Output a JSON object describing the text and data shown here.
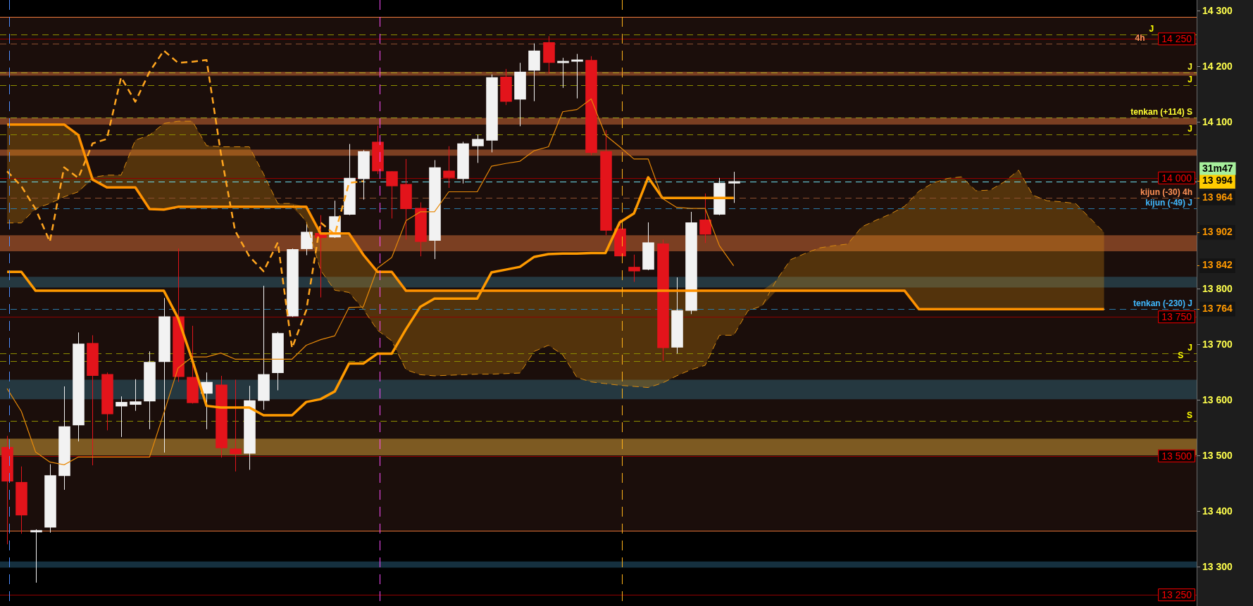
{
  "chart_data": {
    "type": "candlestick",
    "categories": [
      null,
      null,
      null,
      null,
      null,
      null,
      null,
      null,
      null,
      null,
      null,
      null,
      null,
      null,
      null,
      null,
      null,
      null,
      null,
      null,
      null,
      null,
      null,
      null,
      null,
      null,
      null,
      null,
      null,
      null,
      null,
      null,
      null,
      null,
      null,
      null,
      null,
      null,
      null,
      null,
      null,
      null,
      null,
      null,
      null,
      null,
      null,
      null,
      null,
      null,
      null,
      null,
      null,
      null,
      null,
      null,
      null,
      null,
      null,
      null,
      null,
      null,
      null,
      null,
      null,
      null,
      null,
      null,
      null,
      null,
      null,
      null,
      null,
      null,
      null,
      null,
      null,
      null
    ],
    "ohlc": [
      [
        13516,
        13536,
        13341,
        13454
      ],
      [
        13453,
        13481,
        13360,
        13393
      ],
      [
        13363,
        13368,
        13272,
        13366
      ],
      [
        13371,
        13485,
        13362,
        13465
      ],
      [
        13464,
        13625,
        13439,
        13553
      ],
      [
        13555,
        13722,
        13526,
        13702
      ],
      [
        13703,
        13717,
        13483,
        13644
      ],
      [
        13647,
        13650,
        13546,
        13575
      ],
      [
        13589,
        13607,
        13534,
        13597
      ],
      [
        13592,
        13638,
        13581,
        13598
      ],
      [
        13598,
        13688,
        13548,
        13669
      ],
      [
        13669,
        13784,
        13506,
        13751
      ],
      [
        13751,
        13873,
        13633,
        13642
      ],
      [
        13642,
        13734,
        13594,
        13595
      ],
      [
        13612,
        13650,
        13548,
        13633
      ],
      [
        13628,
        13644,
        13497,
        13514
      ],
      [
        13513,
        13637,
        13472,
        13503
      ],
      [
        13504,
        13626,
        13475,
        13600
      ],
      [
        13599,
        13806,
        13583,
        13647
      ],
      [
        13649,
        13723,
        13618,
        13721
      ],
      [
        13751,
        13873,
        13750,
        13872
      ],
      [
        13872,
        13918,
        13861,
        13903
      ],
      [
        13901,
        13933,
        13785,
        13892
      ],
      [
        13893,
        13959,
        13892,
        13931
      ],
      [
        13934,
        14061,
        13933,
        14000
      ],
      [
        13998,
        14050,
        13961,
        14048
      ],
      [
        14065,
        14094,
        14007,
        14012
      ],
      [
        14012,
        14012,
        13927,
        13985
      ],
      [
        13989,
        14034,
        13889,
        13944
      ],
      [
        13946,
        13956,
        13859,
        13885
      ],
      [
        13887,
        14032,
        13854,
        14019
      ],
      [
        14013,
        14057,
        13982,
        14000
      ],
      [
        13998,
        14065,
        13990,
        14062
      ],
      [
        14057,
        14078,
        14027,
        14070
      ],
      [
        14067,
        14186,
        14046,
        14181
      ],
      [
        14182,
        14196,
        14131,
        14137
      ],
      [
        14141,
        14207,
        14093,
        14191
      ],
      [
        14193,
        14242,
        14138,
        14229
      ],
      [
        14244,
        14255,
        14187,
        14207
      ],
      [
        14208,
        14216,
        14162,
        14209
      ],
      [
        14210,
        14223,
        14143,
        14212
      ],
      [
        14212,
        14219,
        14041,
        14045
      ],
      [
        14048,
        14086,
        13897,
        13905
      ],
      [
        13909,
        13925,
        13859,
        13859
      ],
      [
        13840,
        13862,
        13813,
        13832
      ],
      [
        13835,
        13920,
        13834,
        13884
      ],
      [
        13882,
        13889,
        13671,
        13694
      ],
      [
        13695,
        13821,
        13684,
        13762
      ],
      [
        13761,
        13939,
        13755,
        13920
      ],
      [
        13925,
        13972,
        13883,
        13898
      ],
      [
        13934,
        14000,
        13933,
        13991
      ],
      [
        13990,
        14011,
        13955,
        13994
      ],
      null,
      null,
      null,
      null,
      null,
      null,
      null,
      null,
      null,
      null,
      null,
      null,
      null,
      null,
      null,
      null,
      null,
      null,
      null,
      null,
      null,
      null,
      null,
      null,
      null,
      null
    ],
    "colors": [
      "#e3141b",
      "#e3141b",
      "#f2f2f2",
      "#f2f2f2",
      "#f2f2f2",
      "#f2f2f2",
      "#e3141b",
      "#e3141b",
      "#f2f2f2",
      "#f2f2f2",
      "#f2f2f2",
      "#f2f2f2",
      "#e3141b",
      "#e3141b",
      "#f2f2f2",
      "#e3141b",
      "#e3141b",
      "#f2f2f2",
      "#f2f2f2",
      "#f2f2f2",
      "#f2f2f2",
      "#f2f2f2",
      "#e3141b",
      "#f2f2f2",
      "#f2f2f2",
      "#f2f2f2",
      "#e3141b",
      "#e3141b",
      "#e3141b",
      "#e3141b",
      "#f2f2f2",
      "#e3141b",
      "#f2f2f2",
      "#f2f2f2",
      "#f2f2f2",
      "#e3141b",
      "#f2f2f2",
      "#f2f2f2",
      "#e3141b",
      "#f2f2f2",
      "#f2f2f2",
      "#e3141b",
      "#e3141b",
      "#e3141b",
      "#e3141b",
      "#f2f2f2",
      "#e3141b",
      "#f2f2f2",
      "#f2f2f2",
      "#e3141b",
      "#f2f2f2",
      "#f2f2f2",
      null,
      null,
      null,
      null,
      null,
      null,
      null,
      null,
      null,
      null,
      null,
      null,
      null,
      null,
      null,
      null,
      null,
      null,
      null,
      null,
      null,
      null,
      null,
      null,
      null,
      null
    ],
    "series": [
      {
        "type": "line",
        "color": "#ff9a00",
        "values": [
          13831,
          13831,
          13797,
          13797,
          13797,
          13797,
          13797,
          13797,
          13797,
          13797,
          13797,
          13797,
          13748,
          13672,
          13590,
          13587,
          13587,
          13587,
          13573,
          13573,
          13573,
          13597,
          13602,
          13616,
          13666,
          13666,
          13684,
          13684,
          13728,
          13768,
          13783,
          13783,
          13783,
          13783,
          13830,
          13835,
          13840,
          13858,
          13863,
          13864,
          13864,
          13865,
          13865,
          13920,
          13936,
          14001,
          13964,
          13964,
          13964,
          13964,
          13964,
          13964,
          null,
          null,
          null,
          null,
          null,
          null,
          null,
          null,
          null,
          null,
          null,
          null,
          null,
          null,
          null,
          null,
          null,
          null,
          null,
          null,
          null,
          null,
          null,
          null,
          null,
          null
        ]
      },
      {
        "type": "line",
        "color": "#e88a0a",
        "values": [
          13621,
          13580,
          13507,
          13489,
          13484,
          13498,
          13498,
          13498,
          13498,
          13498,
          13498,
          13577,
          13658,
          13678,
          13678,
          13685,
          13674,
          13674,
          13674,
          13674,
          13674,
          13699,
          13709,
          13716,
          13767,
          13768,
          13838,
          13857,
          13923,
          13939,
          13939,
          13975,
          13975,
          13975,
          14021,
          14026,
          14030,
          14049,
          14056,
          14119,
          14123,
          14142,
          14077,
          14056,
          14034,
          14034,
          13963,
          13947,
          13945,
          13945,
          13878,
          13842,
          null,
          null,
          null,
          null,
          null,
          null,
          null,
          null,
          null,
          null,
          null,
          null,
          null,
          null,
          null,
          null,
          null,
          null,
          null,
          null,
          null,
          null,
          null,
          null,
          null,
          null
        ]
      },
      {
        "type": "line",
        "color": "#ffa51f",
        "line_style": "dashed",
        "values": [
          14012,
          13985,
          13944,
          13885,
          14019,
          14000,
          14062,
          14070,
          14181,
          14137,
          14191,
          14229,
          14207,
          14209,
          14212,
          14045,
          13905,
          13859,
          13832,
          13884,
          13694,
          13762,
          13920,
          13898,
          13991,
          13994,
          null,
          null,
          null,
          null,
          null,
          null,
          null,
          null,
          null,
          null,
          null,
          null,
          null,
          null,
          null,
          null,
          null,
          null,
          null,
          null,
          null,
          null,
          null,
          null,
          null,
          null,
          null,
          null,
          null,
          null,
          null,
          null,
          null,
          null,
          null,
          null,
          null,
          null,
          null,
          null,
          null,
          null,
          null,
          null,
          null,
          null,
          null,
          null,
          null,
          null,
          null,
          null
        ]
      },
      {
        "type": "line",
        "color": "#ff9200",
        "values": [
          14096,
          14096,
          14096,
          14096,
          14096,
          14077,
          13997,
          13983,
          13983,
          13983,
          13944,
          13943,
          13948,
          13948,
          13948,
          13948,
          13948,
          13948,
          13948,
          13948,
          13948,
          13948,
          13900,
          13900,
          13900,
          13862,
          13831,
          13831,
          13797,
          13797,
          13797,
          13797,
          13797,
          13797,
          13797,
          13797,
          13797,
          13797,
          13797,
          13797,
          13797,
          13797,
          13797,
          13797,
          13797,
          13797,
          13797,
          13797,
          13797,
          13797,
          13797,
          13797,
          13797,
          13797,
          13797,
          13797,
          13797,
          13797,
          13797,
          13797,
          13797,
          13797,
          13797,
          13797,
          13764,
          13764,
          13764,
          13764,
          13764,
          13764,
          13764,
          13764,
          13764,
          13764,
          13764,
          13764,
          13764,
          13764
        ]
      },
      {
        "type": "line",
        "color": "#d88a10",
        "line_style": "dashed",
        "values": [
          13919,
          13919,
          13945,
          13954,
          13966,
          13975,
          14001,
          14005,
          14005,
          14068,
          14077,
          14098,
          14102,
          14102,
          14058,
          14056,
          14056,
          14056,
          14007,
          13954,
          13954,
          13921,
          13834,
          13798,
          13794,
          13764,
          13726,
          13707,
          13655,
          13646,
          13644,
          13645,
          13646,
          13647,
          13647,
          13648,
          13649,
          13688,
          13699,
          13682,
          13641,
          13633,
          13630,
          13627,
          13625,
          13623,
          13631,
          13644,
          13655,
          13663,
          13717,
          13717,
          13761,
          13770,
          13816,
          13853,
          13864,
          13874,
          13878,
          13881,
          13912,
          13924,
          13935,
          13949,
          13976,
          13991,
          13999,
          14002,
          13977,
          13978,
          13993,
          14014,
          13969,
          13959,
          13957,
          13954,
          13928,
          13902
        ],
        "lower": [
          13919,
          13919,
          13945,
          13954,
          13966,
          13975,
          13997,
          13983,
          13983,
          13983,
          13944,
          13943,
          13948,
          13948,
          13948,
          13948,
          13948,
          13948,
          13948,
          13948,
          13948,
          13921,
          13834,
          13798,
          13794,
          13764,
          13726,
          13707,
          13655,
          13646,
          13644,
          13645,
          13646,
          13647,
          13647,
          13648,
          13649,
          13688,
          13699,
          13682,
          13641,
          13633,
          13630,
          13627,
          13625,
          13623,
          13631,
          13644,
          13655,
          13663,
          13717,
          13717,
          13761,
          13770,
          13797,
          13797,
          13797,
          13797,
          13797,
          13797,
          13797,
          13797,
          13797,
          13797,
          13764,
          13764,
          13764,
          13764,
          13764,
          13764,
          13764,
          13764,
          13764,
          13764,
          13764,
          13764,
          13764,
          13764
        ],
        "upper": [
          14096,
          14096,
          14096,
          14096,
          14096,
          14077,
          14001,
          14005,
          14005,
          14068,
          14077,
          14098,
          14102,
          14102,
          14058,
          14056,
          14056,
          14056,
          14007,
          13954,
          13954,
          13948,
          13900,
          13900,
          13900,
          13862,
          13831,
          13831,
          13797,
          13797,
          13797,
          13797,
          13797,
          13797,
          13797,
          13797,
          13797,
          13797,
          13797,
          13797,
          13797,
          13797,
          13797,
          13797,
          13797,
          13797,
          13797,
          13797,
          13797,
          13797,
          13797,
          13797,
          13797,
          13797,
          13816,
          13853,
          13864,
          13874,
          13878,
          13881,
          13912,
          13924,
          13935,
          13949,
          13976,
          13991,
          13999,
          14002,
          13977,
          13978,
          13993,
          14014,
          13969,
          13959,
          13957,
          13954,
          13928,
          13902
        ]
      }
    ],
    "ylim": [
      13230,
      14320
    ],
    "yticks": [
      {
        "value": 13300,
        "label": "13 300"
      },
      {
        "value": 13400,
        "label": "13 400"
      },
      {
        "value": 13500,
        "label": "13 500"
      },
      {
        "value": 13600,
        "label": "13 600"
      },
      {
        "value": 13700,
        "label": "13 700"
      },
      {
        "value": 13800,
        "label": "13 800"
      },
      {
        "value": 14100,
        "label": "14 100"
      },
      {
        "value": 14200,
        "label": "14 200"
      },
      {
        "value": 14300,
        "label": "14 300"
      },
      {
        "value": 13764,
        "label": "13 764"
      },
      {
        "value": 13842,
        "label": "13 842"
      },
      {
        "value": 13902,
        "label": "13 902"
      },
      {
        "value": 13964,
        "label": "13 964"
      },
      {
        "value": 13994,
        "label": "13 994"
      }
    ],
    "tick_labels": "y",
    "bands": [
      {
        "axis": "y",
        "from": 13366,
        "to": 14289,
        "color": "#1b0e0b"
      },
      {
        "axis": "y",
        "from": 14184,
        "to": 14191,
        "color": "#7b3f22"
      },
      {
        "axis": "y",
        "from": 14096,
        "to": 14108,
        "color": "#7b3f22"
      },
      {
        "axis": "y",
        "from": 14040,
        "to": 14051,
        "color": "#7b3f22"
      },
      {
        "axis": "y",
        "from": 13868,
        "to": 13897,
        "color": "#7b3f22"
      },
      {
        "axis": "y",
        "from": 13803,
        "to": 13822,
        "color": "#253840"
      },
      {
        "axis": "y",
        "from": 13602,
        "to": 13637,
        "color": "#253840"
      },
      {
        "axis": "y",
        "from": 13501,
        "to": 13531,
        "color": "#7d5a22"
      },
      {
        "axis": "y",
        "from": 13299,
        "to": 13310,
        "color": "#15303f"
      }
    ],
    "ref_lines": [
      {
        "axis": "y",
        "value": 14289,
        "color": "#f07a3c",
        "line_style": "solid"
      },
      {
        "axis": "y",
        "value": 13366,
        "color": "#f07a3c",
        "line_style": "solid"
      },
      {
        "axis": "y",
        "value": 14250,
        "label": "14 250",
        "color": "#900000",
        "line_style": "solid"
      },
      {
        "axis": "y",
        "value": 14000,
        "label": "14 000",
        "color": "#900000",
        "line_style": "solid"
      },
      {
        "axis": "y",
        "value": 13750,
        "label": "13 750",
        "color": "#900000",
        "line_style": "solid"
      },
      {
        "axis": "y",
        "value": 13500,
        "label": "13 500",
        "color": "#900000",
        "line_style": "solid"
      },
      {
        "axis": "y",
        "value": 13250,
        "label": "13 250",
        "color": "#900000",
        "line_style": "solid"
      },
      {
        "axis": "y",
        "value": 14258,
        "label": "J",
        "color": "#8c8c00",
        "line_style": "dashed"
      },
      {
        "axis": "y",
        "value": 14242,
        "label": "4h",
        "color": "#8c5030",
        "line_style": "dashed"
      },
      {
        "axis": "y",
        "value": 14190,
        "label": "J",
        "color": "#a0a020",
        "line_style": "dashed"
      },
      {
        "axis": "y",
        "value": 14167,
        "label": "J",
        "color": "#8c8c00",
        "line_style": "dashed"
      },
      {
        "axis": "y",
        "value": 14108,
        "label": "tenkan (+114) S",
        "color": "#a0a020",
        "line_style": "dashed"
      },
      {
        "axis": "y",
        "value": 14078,
        "label": "J",
        "color": "#8c8c00",
        "line_style": "dashed"
      },
      {
        "axis": "y",
        "value": 13994,
        "label": "31m47",
        "color": "#6ee0f0",
        "line_style": "dashed"
      },
      {
        "axis": "y",
        "value": 13964,
        "label": "kijun (-30) 4h",
        "color": "#8c5030",
        "line_style": "dashed"
      },
      {
        "axis": "y",
        "value": 13945,
        "label": "kijun (-49) J",
        "color": "#2a7aa8",
        "line_style": "dashed"
      },
      {
        "axis": "y",
        "value": 13764,
        "label": "tenkan (-230) J",
        "color": "#2a7aa8",
        "line_style": "dashed"
      },
      {
        "axis": "y",
        "value": 13684,
        "label": "J",
        "color": "#8c8c00",
        "line_style": "dashed"
      },
      {
        "axis": "y",
        "value": 13671,
        "label": "S",
        "color": "#8c8c00",
        "line_style": "dashed"
      },
      {
        "axis": "y",
        "value": 13563,
        "label": "S",
        "color": "#8c8c00",
        "line_style": "dashed"
      }
    ]
  }
}
